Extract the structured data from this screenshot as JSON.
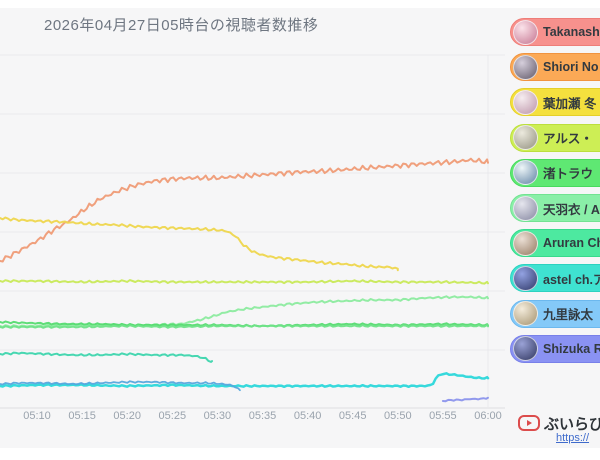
{
  "title": "2026年04月27日05時台の視聴者数推移",
  "chart_data": {
    "type": "line",
    "title": "2026年04月27日05時台の視聴者数推移",
    "xlabel": "time (05:05–06:00, 5-minute ticks)",
    "ylabel": "視聴者数 (y-axis labels cropped out of view at left edge)",
    "x_ticks": [
      "05:10",
      "05:15",
      "05:20",
      "05:25",
      "05:30",
      "05:35",
      "05:40",
      "05:45",
      "05:50",
      "05:55",
      "06:00"
    ],
    "grid": "horizontal",
    "legend_position": "right",
    "note": "y values are vertical screen positions (px, smaller = more viewers); no numeric y labels visible",
    "series": [
      {
        "name": "Takanashi",
        "color": "#ef9b76",
        "width": 2,
        "amp": 2.6,
        "points": [
          [
            5.9,
            261
          ],
          [
            7,
            256
          ],
          [
            8,
            251
          ],
          [
            9,
            246
          ],
          [
            10,
            241
          ],
          [
            11,
            235
          ],
          [
            12,
            229
          ],
          [
            13,
            224
          ],
          [
            14,
            218
          ],
          [
            15,
            211
          ],
          [
            16,
            205
          ],
          [
            17,
            199
          ],
          [
            18,
            195
          ],
          [
            19,
            191
          ],
          [
            20,
            188
          ],
          [
            21,
            185
          ],
          [
            22,
            183
          ],
          [
            23,
            181
          ],
          [
            24,
            180
          ],
          [
            25,
            179
          ],
          [
            27,
            178
          ],
          [
            30,
            178
          ],
          [
            33,
            176
          ],
          [
            36,
            174
          ],
          [
            39,
            172
          ],
          [
            42,
            171
          ],
          [
            45,
            169
          ],
          [
            48,
            167
          ],
          [
            51,
            165
          ],
          [
            54,
            163
          ],
          [
            56,
            162
          ],
          [
            58,
            160
          ],
          [
            59,
            161
          ],
          [
            60,
            162
          ]
        ]
      },
      {
        "name": "Shiori No",
        "color": "#eed64d",
        "width": 2,
        "amp": 1.4,
        "points": [
          [
            5.9,
            218
          ],
          [
            8,
            220
          ],
          [
            10,
            221
          ],
          [
            13,
            222
          ],
          [
            16,
            224
          ],
          [
            19,
            225
          ],
          [
            22,
            227
          ],
          [
            25,
            228
          ],
          [
            28,
            229
          ],
          [
            30,
            230
          ],
          [
            31,
            231
          ],
          [
            32,
            236
          ],
          [
            33,
            246
          ],
          [
            34,
            252
          ],
          [
            35,
            255
          ],
          [
            36,
            257
          ],
          [
            38,
            259
          ],
          [
            40,
            261
          ],
          [
            42,
            263
          ],
          [
            44,
            264
          ],
          [
            46,
            266
          ],
          [
            48,
            267
          ],
          [
            49,
            267
          ],
          [
            50,
            269
          ]
        ]
      },
      {
        "name": "葉加瀬 冬",
        "color": "#c8e957",
        "width": 2,
        "amp": 1.1,
        "points": [
          [
            5.9,
            281
          ],
          [
            10,
            281
          ],
          [
            15,
            282
          ],
          [
            20,
            281
          ],
          [
            25,
            282
          ],
          [
            30,
            282
          ],
          [
            35,
            282
          ],
          [
            40,
            282
          ],
          [
            45,
            281
          ],
          [
            50,
            282
          ],
          [
            55,
            282
          ],
          [
            60,
            283
          ]
        ]
      },
      {
        "name": "アルス・",
        "color": "#8ceb9f",
        "width": 2,
        "amp": 1.1,
        "points": [
          [
            5.9,
            326
          ],
          [
            10,
            326
          ],
          [
            14,
            325
          ],
          [
            18,
            325
          ],
          [
            22,
            325
          ],
          [
            26,
            324
          ],
          [
            28,
            320
          ],
          [
            30,
            315
          ],
          [
            31,
            312
          ],
          [
            33,
            309
          ],
          [
            35,
            307
          ],
          [
            38,
            304
          ],
          [
            41,
            302
          ],
          [
            44,
            301
          ],
          [
            47,
            300
          ],
          [
            50,
            300
          ],
          [
            53,
            298
          ],
          [
            56,
            297
          ],
          [
            58,
            297
          ],
          [
            60,
            298
          ]
        ]
      },
      {
        "name": "渚トラウ",
        "color": "#55db70",
        "width": 2,
        "amp": 0.9,
        "points": [
          [
            5.9,
            322
          ],
          [
            9,
            323
          ],
          [
            13,
            324
          ],
          [
            17,
            324
          ],
          [
            21,
            325
          ],
          [
            25,
            325
          ],
          [
            30,
            325
          ],
          [
            35,
            326
          ],
          [
            40,
            325
          ],
          [
            45,
            324
          ],
          [
            50,
            325
          ],
          [
            55,
            324
          ],
          [
            60,
            325
          ]
        ]
      },
      {
        "name": "天羽衣 / A",
        "color": "#6ee287",
        "width": 2,
        "amp": 0.9,
        "points": [
          [
            5.9,
            327
          ],
          [
            10,
            327
          ],
          [
            15,
            327
          ],
          [
            20,
            326
          ],
          [
            25,
            327
          ],
          [
            30,
            326
          ],
          [
            35,
            326
          ],
          [
            40,
            326
          ],
          [
            45,
            326
          ],
          [
            50,
            326
          ],
          [
            55,
            326
          ],
          [
            60,
            326
          ]
        ]
      },
      {
        "name": "Aruran Ch",
        "color": "#3dd5ad",
        "width": 2,
        "amp": 1.0,
        "points": [
          [
            5.9,
            354
          ],
          [
            8,
            353
          ],
          [
            11,
            354
          ],
          [
            14,
            355
          ],
          [
            17,
            355
          ],
          [
            20,
            354
          ],
          [
            23,
            355
          ],
          [
            26,
            355
          ],
          [
            27.5,
            356
          ],
          [
            28.5,
            358
          ],
          [
            29.4,
            362
          ]
        ]
      },
      {
        "name": "astel ch.ア",
        "color": "#2bd7da",
        "width": 2.5,
        "amp": 0.8,
        "points": [
          [
            5.9,
            386
          ],
          [
            10,
            385
          ],
          [
            15,
            385
          ],
          [
            20,
            386
          ],
          [
            25,
            385
          ],
          [
            30,
            386
          ],
          [
            35,
            386
          ],
          [
            40,
            386
          ],
          [
            45,
            386
          ],
          [
            50,
            386
          ],
          [
            53,
            386
          ],
          [
            53.8,
            385
          ],
          [
            54.3,
            377
          ],
          [
            54.8,
            374
          ],
          [
            55.5,
            374
          ],
          [
            56.5,
            375
          ],
          [
            58,
            377
          ],
          [
            59,
            378
          ],
          [
            60,
            378
          ]
        ]
      },
      {
        "name": "九里詠太",
        "color": "#55a7dd",
        "width": 1.8,
        "amp": 0.9,
        "points": [
          [
            5.9,
            384
          ],
          [
            8,
            383
          ],
          [
            11,
            383
          ],
          [
            14,
            384
          ],
          [
            17,
            383
          ],
          [
            20,
            382
          ],
          [
            23,
            382
          ],
          [
            26,
            383
          ],
          [
            29,
            383
          ],
          [
            30.5,
            384
          ],
          [
            31.5,
            385
          ],
          [
            32,
            387
          ],
          [
            32.5,
            390
          ]
        ]
      },
      {
        "name": "Shizuka R",
        "color": "#8b93ec",
        "width": 2,
        "amp": 0.7,
        "points": [
          [
            55,
            401
          ],
          [
            56,
            400
          ],
          [
            57,
            400
          ],
          [
            58,
            399
          ],
          [
            59,
            399
          ],
          [
            60,
            398
          ]
        ]
      }
    ]
  },
  "legend": {
    "items": [
      {
        "label": "Takanashi",
        "bg": "#f7918d",
        "border": "#ee7d78",
        "avatar": [
          "#fbe3ea",
          "#c4738f"
        ]
      },
      {
        "label": "Shiori No",
        "bg": "#fba956",
        "border": "#f09440",
        "avatar": [
          "#d6cfdc",
          "#5f5767"
        ]
      },
      {
        "label": "葉加瀬 冬",
        "bg": "#f4e03e",
        "border": "#e4cf2a",
        "avatar": [
          "#f6edf0",
          "#bb92a7"
        ]
      },
      {
        "label": "アルス・",
        "bg": "#cdee55",
        "border": "#bcdf3d",
        "avatar": [
          "#eceade",
          "#92907f"
        ]
      },
      {
        "label": "渚トラウ",
        "bg": "#5fe873",
        "border": "#48da5e",
        "avatar": [
          "#eef6f8",
          "#5d80a2"
        ]
      },
      {
        "label": "天羽衣 / A",
        "bg": "#8aefa8",
        "border": "#72e392",
        "avatar": [
          "#e6e6ee",
          "#8486a0"
        ]
      },
      {
        "label": "Aruran Ch",
        "bg": "#4de9a0",
        "border": "#37da8c",
        "avatar": [
          "#ece0d6",
          "#93785f"
        ]
      },
      {
        "label": "astel ch.ア",
        "bg": "#3fe2d1",
        "border": "#2cd2c0",
        "avatar": [
          "#93a2e2",
          "#2e3766"
        ]
      },
      {
        "label": "九里詠太",
        "bg": "#84c9f8",
        "border": "#6cb8ee",
        "avatar": [
          "#f4ecdc",
          "#a3916d"
        ]
      },
      {
        "label": "Shizuka R",
        "bg": "#8a92f3",
        "border": "#7880e9",
        "avatar": [
          "#9aa2d6",
          "#2f355e"
        ]
      }
    ]
  },
  "footer": {
    "brand": "ぶいらび",
    "url": "https://",
    "icon_color": "#dc4c4c"
  },
  "colors": {
    "card_bg": "#f6f6f7",
    "grid": "#e9e9ec",
    "axis": "#dfdfe2",
    "tick_text": "#9aa3ad",
    "title_text": "#6e7681"
  }
}
